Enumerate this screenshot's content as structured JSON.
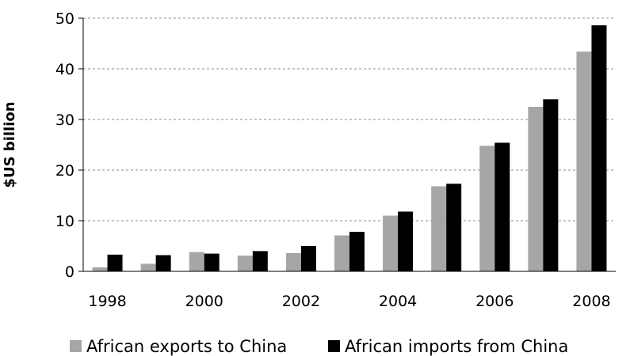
{
  "chart_data": {
    "type": "bar",
    "title": "",
    "xlabel": "",
    "ylabel": "$US billion",
    "ylim": [
      0,
      50
    ],
    "yticks": [
      0,
      10,
      20,
      30,
      40,
      50
    ],
    "grid": true,
    "legend_position": "bottom",
    "categories": [
      "1998",
      "1999",
      "2000",
      "2001",
      "2002",
      "2003",
      "2004",
      "2005",
      "2006",
      "2007",
      "2008"
    ],
    "xtick_labels": [
      "1998",
      "",
      "2000",
      "",
      "2002",
      "",
      "2004",
      "",
      "2006",
      "",
      "2008"
    ],
    "series": [
      {
        "name": "African exports to China",
        "color": "#a6a6a6",
        "values": [
          0.8,
          1.5,
          3.8,
          3.1,
          3.6,
          7.1,
          11.0,
          16.8,
          24.8,
          32.5,
          43.4
        ]
      },
      {
        "name": "African imports from China",
        "color": "#000000",
        "values": [
          3.3,
          3.2,
          3.5,
          4.0,
          5.0,
          7.8,
          11.8,
          17.3,
          25.4,
          34.0,
          48.6
        ]
      }
    ]
  }
}
